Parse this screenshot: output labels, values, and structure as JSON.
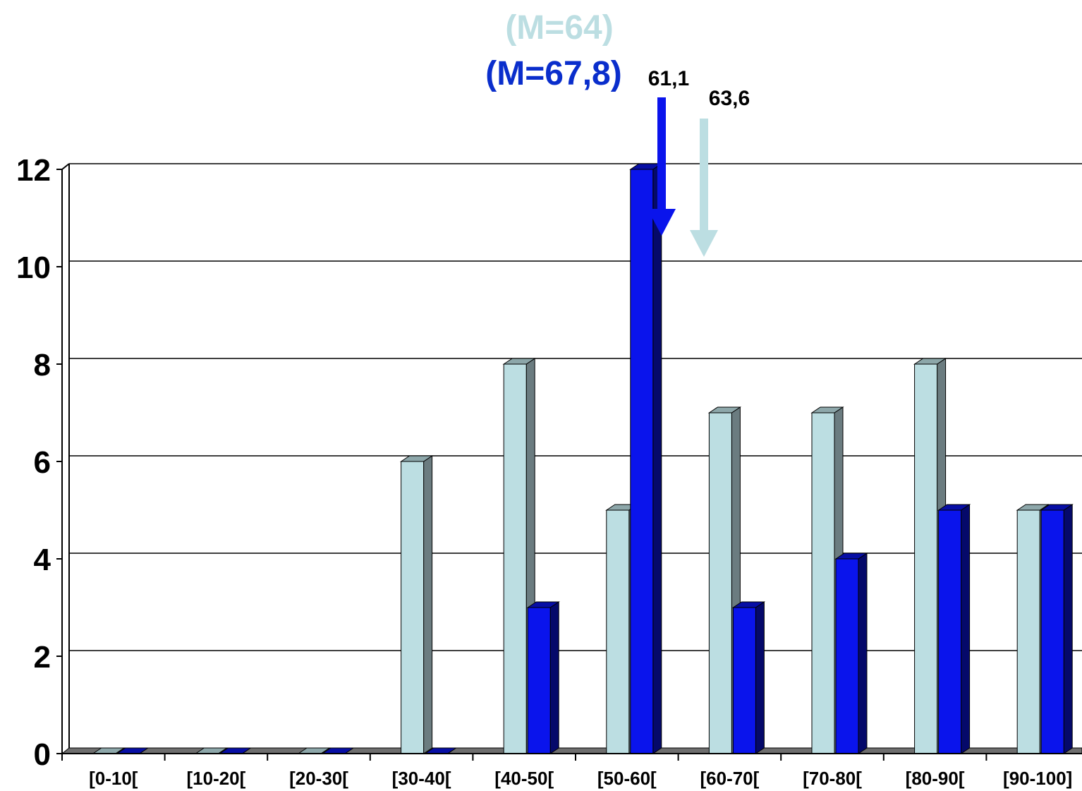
{
  "chart_data": {
    "type": "bar",
    "categories": [
      "[0-10[",
      "[10-20[",
      "[20-30[",
      "[30-40[",
      "[40-50[",
      "[50-60[",
      "[60-70[",
      "[70-80[",
      "[80-90[",
      "[90-100]"
    ],
    "series": [
      {
        "values": [
          0,
          0,
          0,
          6,
          8,
          5,
          7,
          7,
          8,
          5
        ],
        "color": "#BCDEE2"
      },
      {
        "values": [
          0,
          0,
          0,
          0,
          3,
          12,
          3,
          4,
          5,
          5
        ],
        "color": "#0A14EC"
      }
    ],
    "ylim": [
      0,
      12
    ],
    "yticks": [
      0,
      2,
      4,
      6,
      8,
      10,
      12
    ],
    "grid": true,
    "style": "3d-clustered-columns",
    "annotations": [
      {
        "text": "(M=64)",
        "color": "#BCDEE2",
        "kind": "mean-label"
      },
      {
        "text": "(M=67,8)",
        "color": "#0A2ECC",
        "kind": "mean-label"
      },
      {
        "text": "61,1",
        "color": "#000000",
        "kind": "arrow-label",
        "arrow_color": "#0A14EC",
        "x_value": 61.1
      },
      {
        "text": "63,6",
        "color": "#000000",
        "kind": "arrow-label",
        "arrow_color": "#BCDEE2",
        "x_value": 63.6
      }
    ]
  }
}
